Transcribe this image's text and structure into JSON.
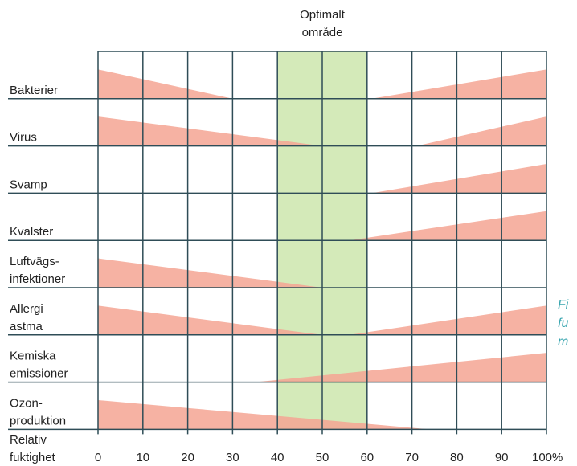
{
  "chart_data": {
    "type": "area",
    "title": "",
    "optimal_zone": {
      "label_lines": [
        "Optimalt",
        "område"
      ],
      "from": 40,
      "to": 60,
      "color": "#d4eab9"
    },
    "xlabel_lines": [
      "Relativ",
      "fuktighet"
    ],
    "x_ticks": [
      "0",
      "10",
      "20",
      "30",
      "40",
      "50",
      "60",
      "70",
      "80",
      "90",
      "100%"
    ],
    "xlim": [
      0,
      100
    ],
    "grid": true,
    "colors": {
      "risk": "#f5a593",
      "line": "#2f4d57"
    },
    "caption_lines": [
      "Fi",
      "fu",
      "m"
    ],
    "rows": [
      {
        "label_lines": [
          "Bakterier"
        ],
        "left": {
          "x0": 0,
          "x1": 30,
          "h": 0.62
        },
        "right": {
          "x0": 61,
          "x1": 100,
          "h": 0.62
        }
      },
      {
        "label_lines": [
          "Virus"
        ],
        "left": {
          "x0": 0,
          "x1": 50,
          "h": 0.62
        },
        "right": {
          "x0": 71,
          "x1": 100,
          "h": 0.62
        }
      },
      {
        "label_lines": [
          "Svamp"
        ],
        "left": null,
        "right": {
          "x0": 61,
          "x1": 100,
          "h": 0.62
        }
      },
      {
        "label_lines": [
          "Kvalster"
        ],
        "left": null,
        "right": {
          "x0": 56,
          "x1": 100,
          "h": 0.62
        }
      },
      {
        "label_lines": [
          "Luftvägs-",
          "infektioner"
        ],
        "left": {
          "x0": 0,
          "x1": 50,
          "h": 0.62
        },
        "right": null
      },
      {
        "label_lines": [
          "Allergi",
          "astma"
        ],
        "left": {
          "x0": 0,
          "x1": 50,
          "h": 0.62
        },
        "right": {
          "x0": 56,
          "x1": 100,
          "h": 0.62
        }
      },
      {
        "label_lines": [
          "Kemiska",
          "emissioner"
        ],
        "left": null,
        "right": {
          "x0": 35,
          "x1": 100,
          "h": 0.62
        }
      },
      {
        "label_lines": [
          "Ozon-",
          "produktion"
        ],
        "left": {
          "x0": 0,
          "x1": 74,
          "h": 0.62
        },
        "right": null
      }
    ]
  }
}
